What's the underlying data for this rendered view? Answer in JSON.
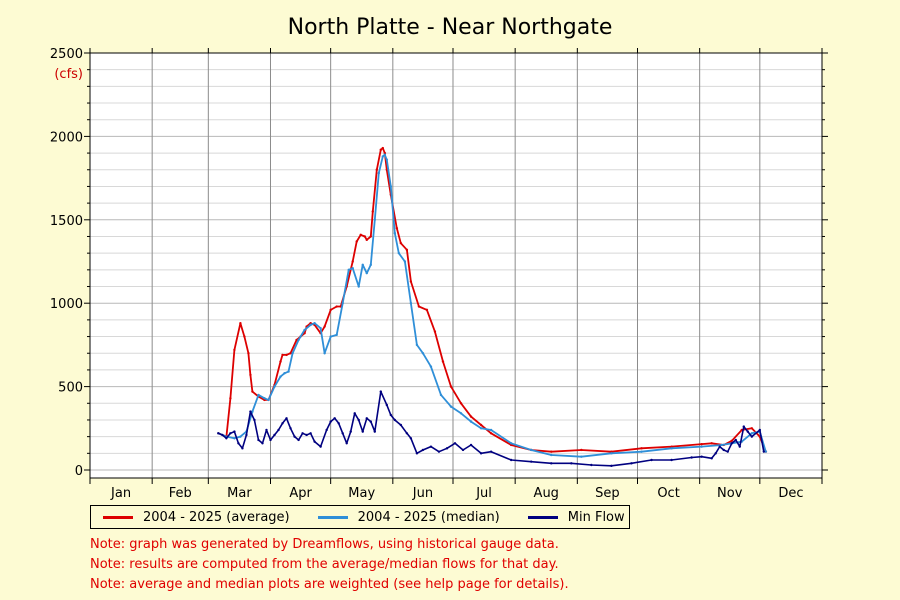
{
  "chart_data": {
    "type": "line",
    "title": "North Platte - Near Northgate",
    "ylabel": "(cfs)",
    "xlabel": "",
    "ylim": [
      0,
      2500
    ],
    "yticks": [
      0,
      500,
      1000,
      1500,
      2000,
      2500
    ],
    "months": [
      "Jan",
      "Feb",
      "Mar",
      "Apr",
      "May",
      "Jun",
      "Jul",
      "Aug",
      "Sep",
      "Oct",
      "Nov",
      "Dec"
    ],
    "grid": true,
    "x_units": "day of year (1 Jan = 0)",
    "series": [
      {
        "name": "2004 - 2025 (average)",
        "color": "#dd0000",
        "x": [
          64,
          68,
          70,
          72,
          75,
          77,
          79,
          80,
          81,
          84,
          87,
          89,
          92,
          95,
          96,
          98,
          100,
          103,
          105,
          107,
          108,
          110,
          112,
          115,
          117,
          120,
          123,
          125,
          128,
          131,
          133,
          135,
          137,
          138,
          140,
          141,
          143,
          145,
          146,
          147,
          148,
          150,
          153,
          155,
          158,
          160,
          164,
          168,
          172,
          176,
          180,
          185,
          190,
          195,
          200,
          210,
          220,
          230,
          245,
          260,
          275,
          290,
          305,
          310,
          316,
          320,
          325,
          330,
          334,
          337
        ],
        "y": [
          220,
          200,
          430,
          720,
          880,
          800,
          700,
          570,
          470,
          440,
          420,
          420,
          510,
          650,
          690,
          690,
          700,
          780,
          800,
          820,
          860,
          880,
          870,
          820,
          860,
          960,
          980,
          980,
          1100,
          1250,
          1370,
          1410,
          1400,
          1380,
          1400,
          1550,
          1800,
          1920,
          1930,
          1900,
          1800,
          1650,
          1450,
          1360,
          1320,
          1130,
          980,
          960,
          830,
          650,
          500,
          400,
          320,
          270,
          220,
          150,
          120,
          110,
          120,
          110,
          130,
          140,
          155,
          160,
          150,
          175,
          240,
          250,
          200,
          110
        ]
      },
      {
        "name": "2004 - 2025 (median)",
        "color": "#2f8fd8",
        "x": [
          64,
          68,
          72,
          75,
          78,
          81,
          84,
          87,
          89,
          92,
          95,
          97,
          99,
          101,
          104,
          107,
          110,
          112,
          115,
          117,
          120,
          123,
          126,
          129,
          131,
          134,
          136,
          138,
          140,
          142,
          144,
          146,
          147,
          148,
          150,
          152,
          154,
          157,
          160,
          163,
          166,
          170,
          175,
          180,
          185,
          190,
          195,
          200,
          210,
          220,
          230,
          245,
          260,
          275,
          290,
          305,
          315,
          320,
          325,
          330,
          334,
          337
        ],
        "y": [
          220,
          200,
          190,
          200,
          230,
          350,
          450,
          430,
          420,
          500,
          560,
          580,
          590,
          700,
          780,
          840,
          870,
          880,
          850,
          700,
          800,
          810,
          1000,
          1200,
          1210,
          1100,
          1230,
          1180,
          1230,
          1500,
          1780,
          1880,
          1890,
          1860,
          1700,
          1420,
          1300,
          1250,
          1000,
          750,
          700,
          620,
          450,
          380,
          340,
          290,
          250,
          240,
          160,
          120,
          90,
          80,
          100,
          110,
          130,
          140,
          150,
          160,
          170,
          220,
          230,
          110
        ]
      },
      {
        "name": "Min Flow",
        "color": "#000080",
        "x": [
          64,
          66,
          68,
          70,
          72,
          74,
          76,
          78,
          80,
          82,
          84,
          86,
          88,
          90,
          92,
          94,
          96,
          98,
          100,
          102,
          104,
          106,
          108,
          110,
          112,
          115,
          118,
          120,
          122,
          124,
          126,
          128,
          130,
          132,
          134,
          136,
          138,
          140,
          142,
          145,
          148,
          150,
          152,
          155,
          158,
          160,
          163,
          166,
          170,
          174,
          178,
          182,
          186,
          190,
          195,
          200,
          210,
          220,
          230,
          240,
          250,
          260,
          270,
          280,
          290,
          300,
          305,
          310,
          312,
          314,
          316,
          318,
          320,
          322,
          324,
          326,
          328,
          330,
          334,
          336
        ],
        "y": [
          220,
          210,
          190,
          220,
          230,
          160,
          130,
          210,
          350,
          300,
          180,
          160,
          240,
          180,
          210,
          240,
          280,
          310,
          250,
          200,
          180,
          220,
          210,
          220,
          170,
          140,
          240,
          290,
          310,
          280,
          220,
          160,
          230,
          340,
          300,
          230,
          310,
          290,
          230,
          470,
          390,
          330,
          300,
          270,
          220,
          190,
          100,
          120,
          140,
          110,
          130,
          160,
          120,
          150,
          100,
          110,
          60,
          50,
          40,
          40,
          30,
          25,
          40,
          60,
          60,
          75,
          80,
          70,
          100,
          140,
          120,
          110,
          160,
          180,
          140,
          260,
          230,
          200,
          240,
          110
        ]
      }
    ],
    "legend": {
      "placement": "bottom",
      "items": [
        "2004 - 2025 (average)",
        "2004 - 2025 (median)",
        "Min Flow"
      ]
    },
    "notes": [
      "Note: graph was generated by Dreamflows, using historical gauge data.",
      "Note: results are computed from the average/median flows for that day.",
      "Note: average and median plots are weighted (see help page for details)."
    ]
  }
}
